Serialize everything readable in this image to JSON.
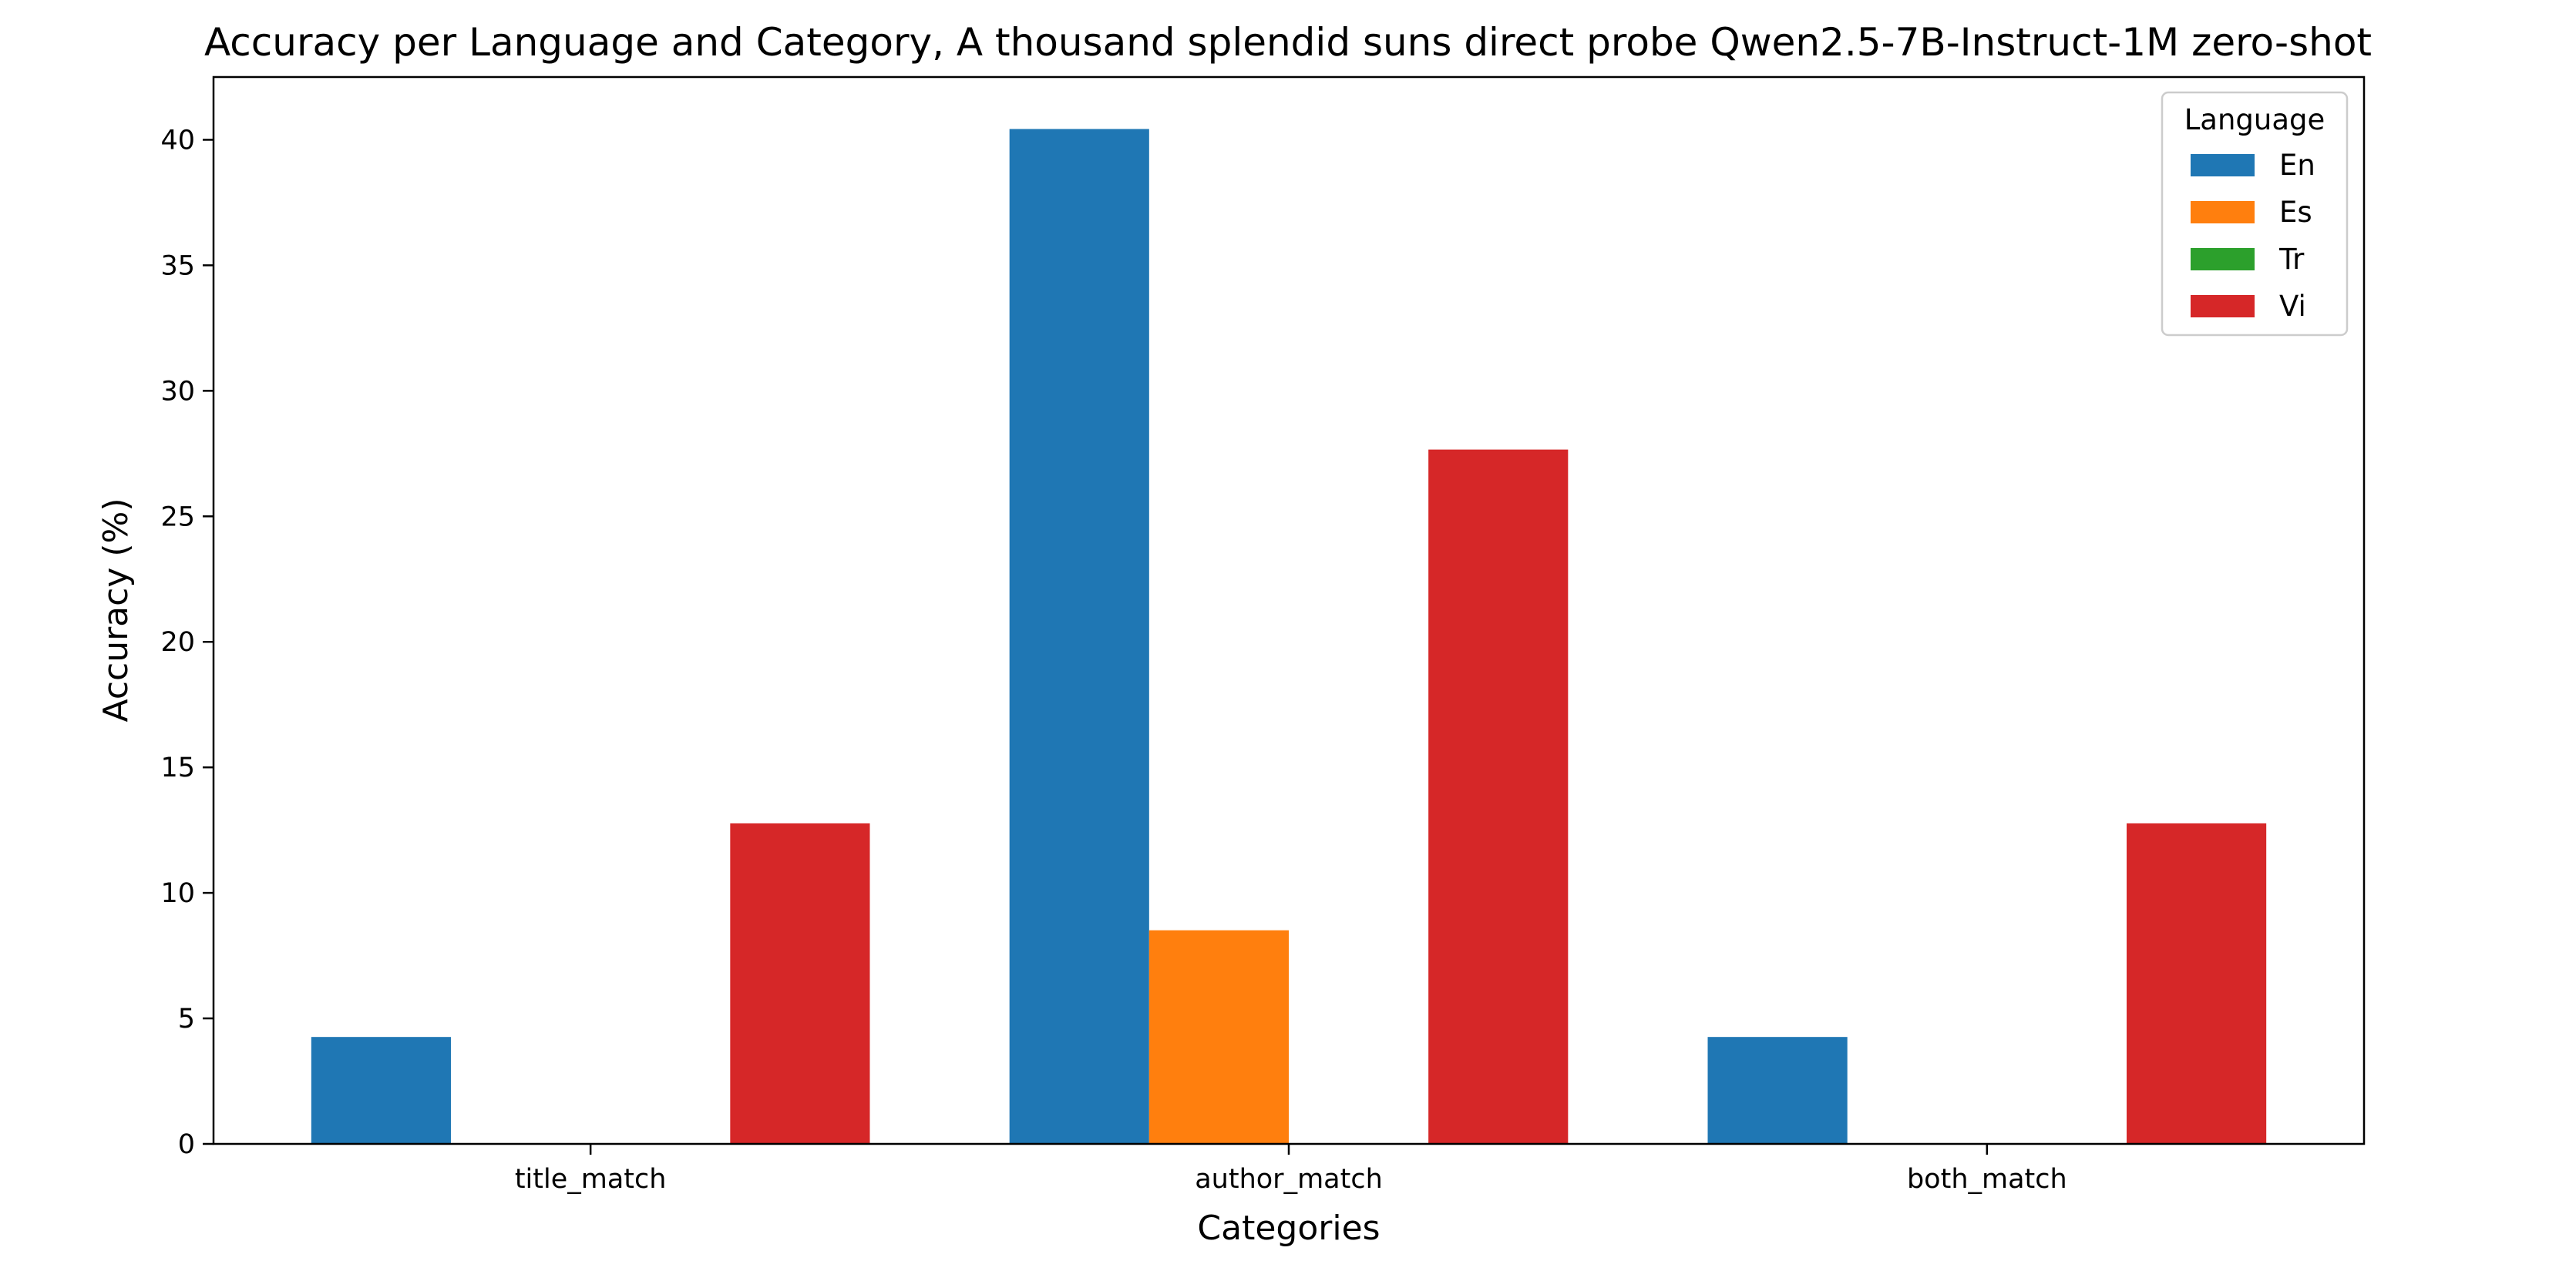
{
  "chart_data": {
    "type": "bar",
    "title": "Accuracy per Language and Category, A thousand splendid suns direct probe Qwen2.5-7B-Instruct-1M zero-shot",
    "xlabel": "Categories",
    "ylabel": "Accuracy (%)",
    "categories": [
      "title_match",
      "author_match",
      "both_match"
    ],
    "series": [
      {
        "name": "En",
        "color": "#1f77b4",
        "values": [
          4.26,
          40.43,
          4.26
        ]
      },
      {
        "name": "Es",
        "color": "#ff7f0e",
        "values": [
          0,
          8.51,
          0
        ]
      },
      {
        "name": "Tr",
        "color": "#2ca02c",
        "values": [
          0,
          0,
          0
        ]
      },
      {
        "name": "Vi",
        "color": "#d62728",
        "values": [
          12.77,
          27.66,
          12.77
        ]
      }
    ],
    "ylim": [
      0,
      42.5
    ],
    "yticks": [
      0,
      5,
      10,
      15,
      20,
      25,
      30,
      35,
      40
    ],
    "grid": false,
    "legend": {
      "title": "Language",
      "placement": "top-right"
    }
  }
}
